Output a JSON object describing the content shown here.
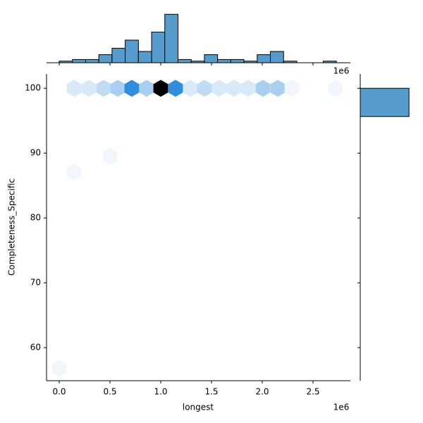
{
  "chart_data": [
    {
      "type": "hexbin",
      "xlabel": "longest",
      "ylabel": "Completeness_Specific",
      "x": [
        146000,
        292000,
        438000,
        576000,
        715000,
        861000,
        1000000,
        1146000,
        1292000,
        1431000,
        1576000,
        1722000,
        1861000,
        2007000,
        2153000,
        2292000,
        2722000,
        146000,
        500000,
        0
      ],
      "y": [
        100,
        100,
        100,
        100,
        100,
        100,
        100,
        100,
        100,
        100,
        100,
        100,
        100,
        100,
        100,
        100,
        100,
        87.1,
        89.5,
        56.8
      ],
      "values": [
        2,
        2,
        3,
        4,
        9,
        4,
        13,
        9,
        2,
        3,
        2,
        2,
        2,
        4,
        4,
        1,
        1,
        1,
        1,
        1
      ],
      "color": "#2f8ddc",
      "xlim": [
        -125000,
        2868000
      ],
      "ylim": [
        54.9,
        102.2
      ],
      "xticks": [
        {
          "value": 0,
          "label": "0.0"
        },
        {
          "value": 500000,
          "label": "0.5"
        },
        {
          "value": 1000000,
          "label": "1.0"
        },
        {
          "value": 1500000,
          "label": "1.5"
        },
        {
          "value": 2000000,
          "label": "2.0"
        },
        {
          "value": 2500000,
          "label": "2.5"
        }
      ],
      "yticks": [
        60,
        70,
        80,
        90,
        100
      ],
      "x_offset_text": "1e6"
    },
    {
      "type": "histogram",
      "bins": [
        0,
        130000,
        260000,
        390000,
        520000,
        650000,
        780000,
        910000,
        1040000,
        1170000,
        1300000,
        1430000,
        1560000,
        1690000,
        1820000,
        1950000,
        2080000,
        2210000,
        2340000,
        2470000,
        2600000,
        2730000
      ],
      "values": [
        1,
        2,
        2,
        5,
        9,
        14,
        7,
        19,
        30,
        2,
        1,
        5,
        2,
        2,
        1,
        5,
        7,
        1,
        0,
        0,
        1
      ],
      "color": "#559bcb",
      "xlim": [
        -125000,
        2868000
      ],
      "ylim": [
        0,
        31
      ],
      "x_offset_text": "1e6"
    },
    {
      "type": "histogram",
      "orientation": "horizontal",
      "bins": [
        95.65,
        100
      ],
      "values": [
        113
      ],
      "color": "#559bcb",
      "xlim": [
        0,
        116
      ],
      "ylim": [
        54.9,
        102.2
      ]
    }
  ]
}
